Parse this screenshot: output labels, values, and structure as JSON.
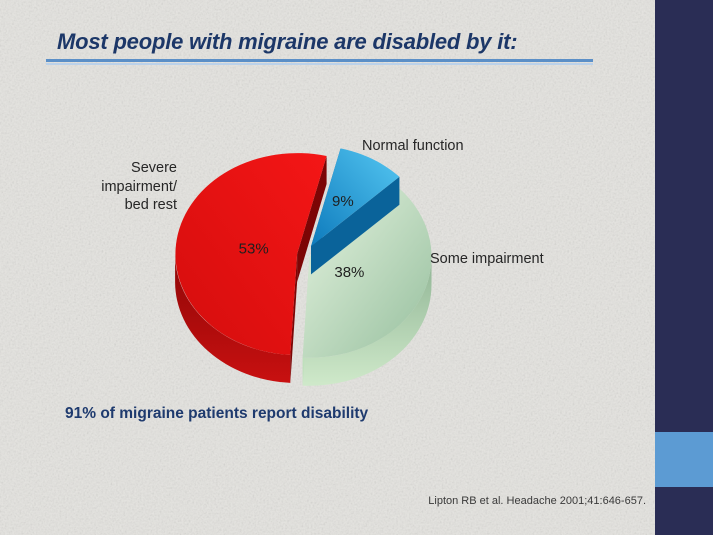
{
  "slide": {
    "title": "Most people with migraine are disabled by it:",
    "conclusion": "91% of migraine patients report disability",
    "citation": "Lipton RB et al. Headache 2001;41:646-657."
  },
  "colors": {
    "background": "#e5e4e0",
    "side_band": "#2a2d55",
    "accent_square": "#5c9bd3",
    "title_text": "#1c3768",
    "title_rule_main": "#5b8fc7",
    "title_rule_light": "#bcd2ea",
    "conclusion_text": "#1e3a6e",
    "citation_text": "#3a3a3a",
    "chart_label_text": "#262626"
  },
  "chart_data": {
    "type": "pie",
    "effect": "3d-exploded",
    "direction": "clockwise",
    "start_angle_deg": 14,
    "title": "",
    "slices": [
      {
        "label": "Normal function",
        "value_pct": 9,
        "pct_label": "9%",
        "color_top": [
          "#55c7f2",
          "#0d7abc"
        ],
        "color_side": [
          "#0c6ba3",
          "#0a5c8d"
        ],
        "color_edge": "#0a639a"
      },
      {
        "label": "Some impairment",
        "value_pct": 38,
        "pct_label": "38%",
        "color_top": [
          "#e6f4e0",
          "#96bf9e"
        ],
        "color_side": [
          "#8fb494",
          "#cfe9ca"
        ],
        "color_edge": "#bfe0bc"
      },
      {
        "label": "Severe\nimpairment/\nbed rest",
        "value_pct": 53,
        "pct_label": "53%",
        "color_top": [
          "#f41616",
          "#d40d0d"
        ],
        "color_side": [
          "#8e0707",
          "#c81010"
        ],
        "color_edge": "#7c0505"
      }
    ]
  }
}
